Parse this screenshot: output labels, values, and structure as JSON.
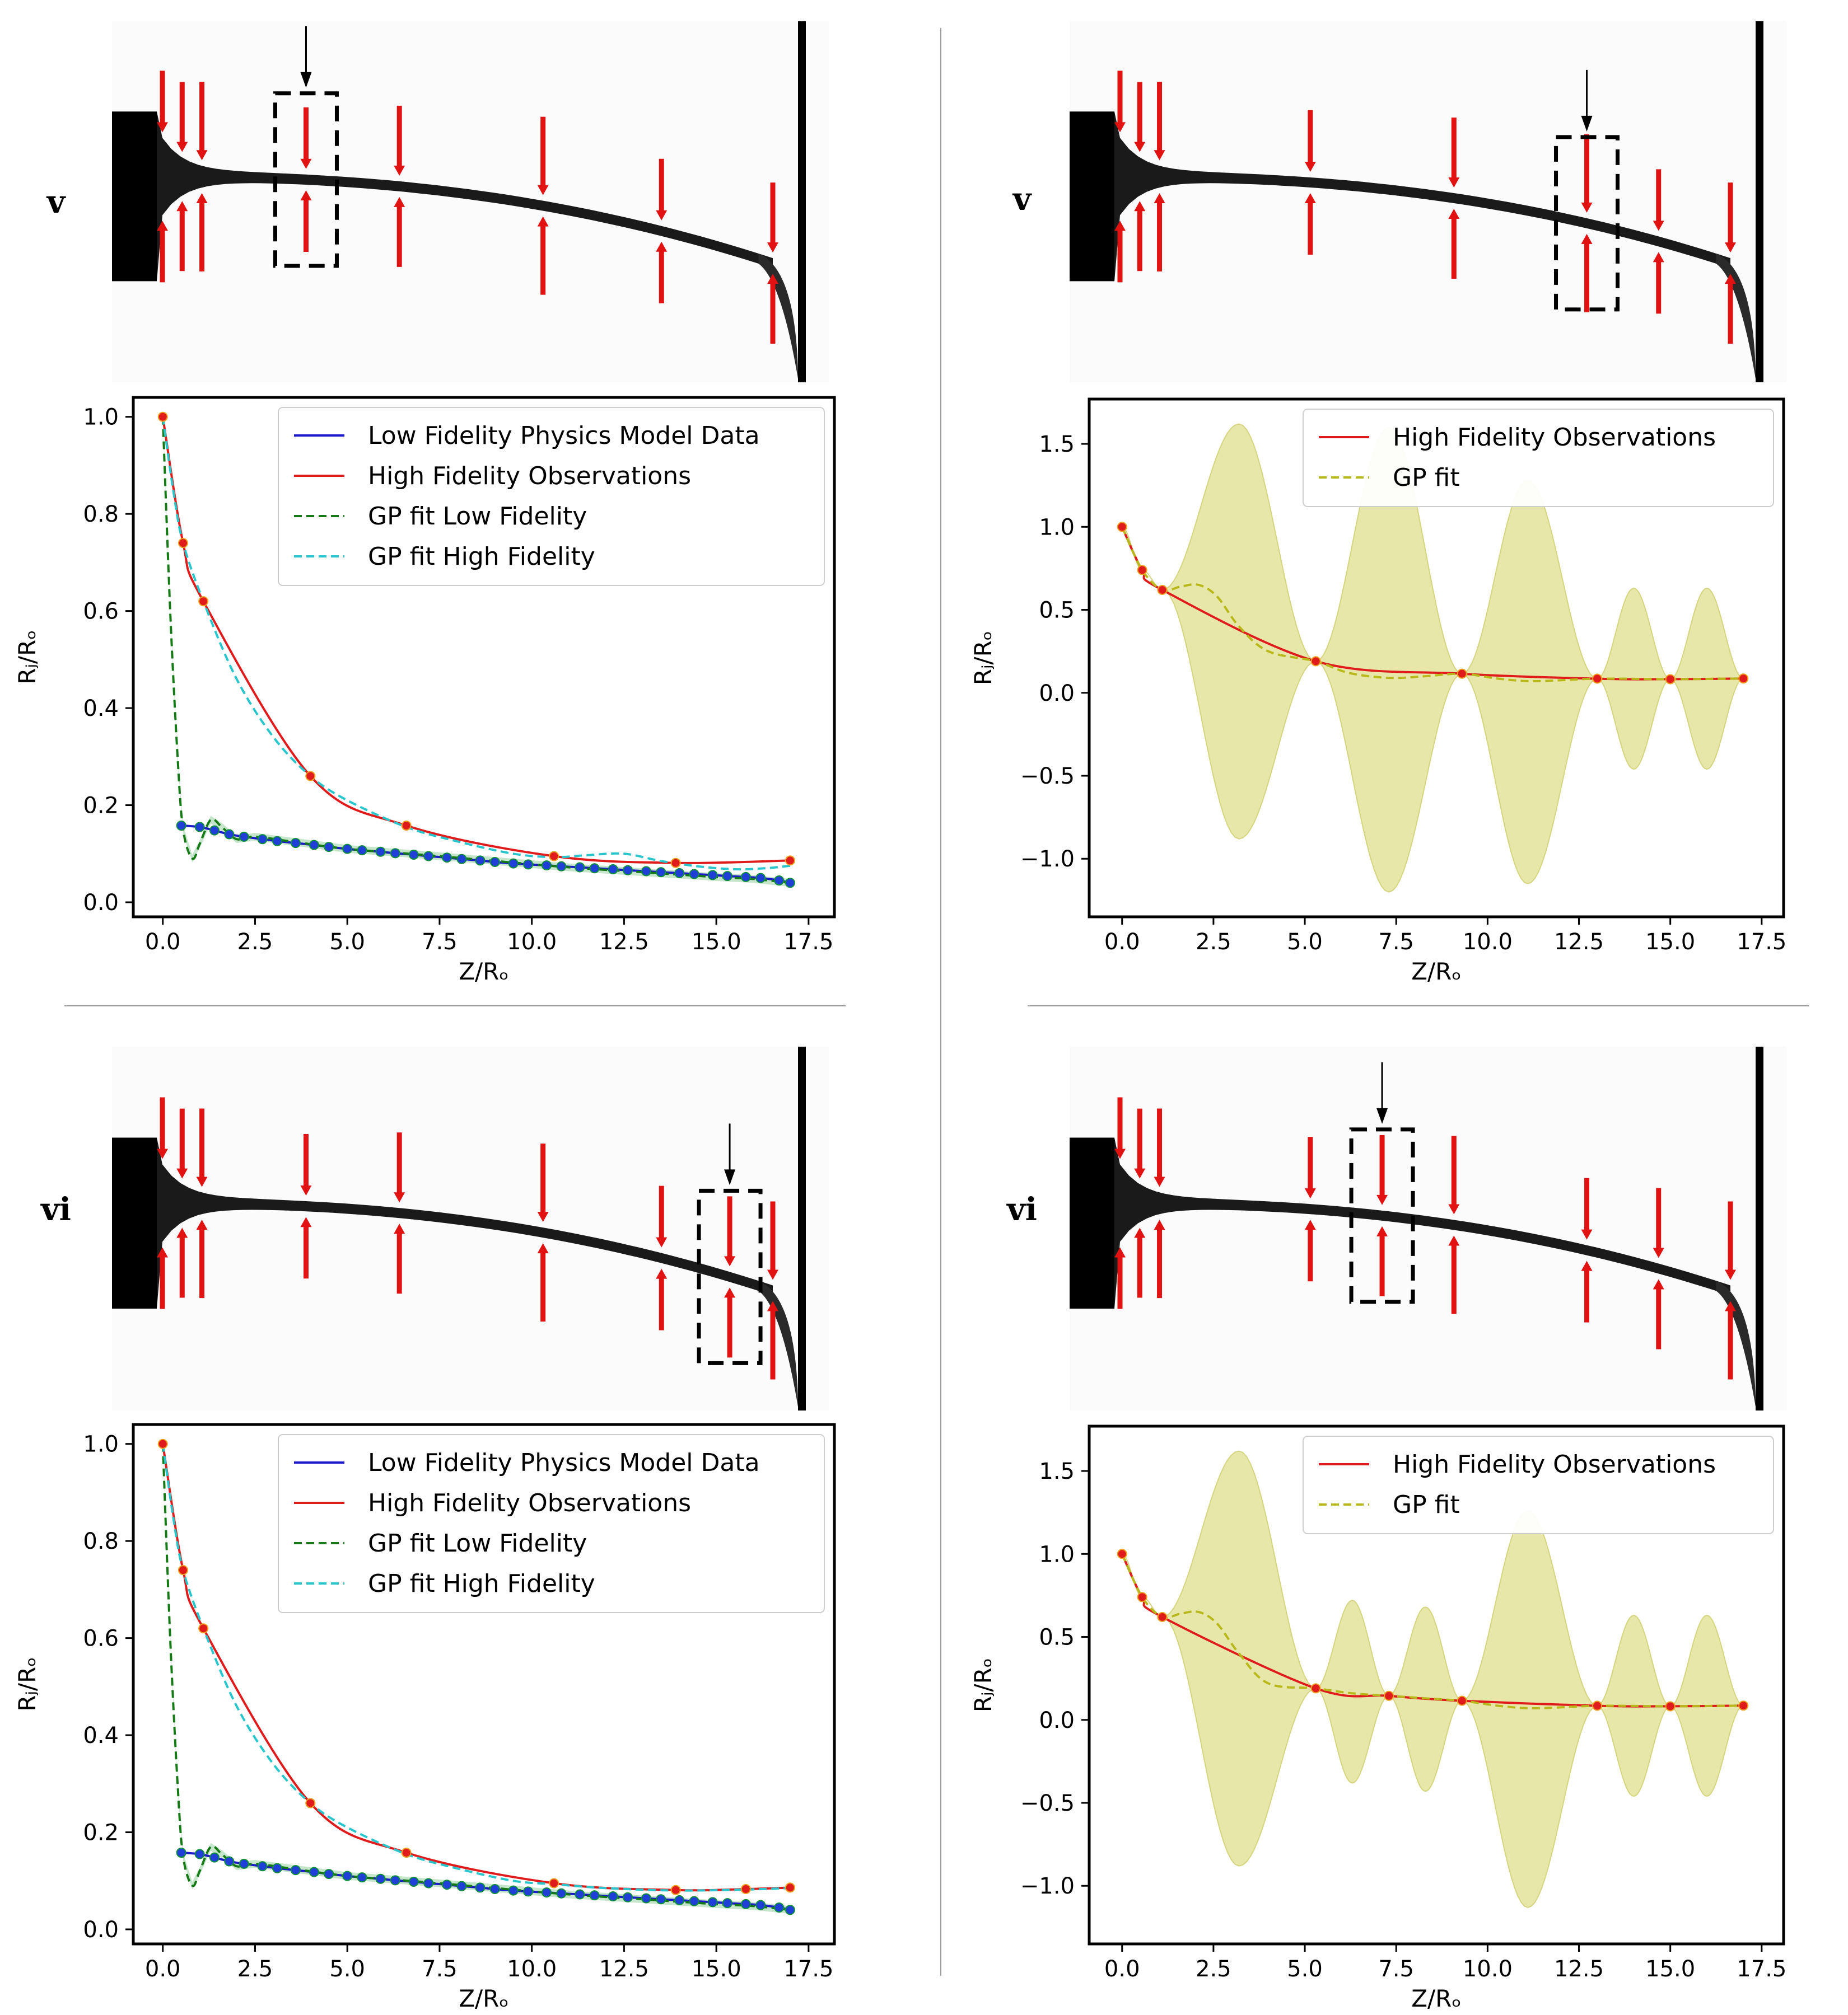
{
  "panel_labels": {
    "top": "v",
    "bottom": "vi"
  },
  "colors": {
    "lowfi_line": "#1a1acc",
    "lowfi_point": "#1f3fd6",
    "highfi_line": "#e01b1b",
    "gp_low": "#157a15",
    "gp_high": "#28c6cc",
    "gp_fit": "#b8b81a",
    "gp_band": "#e6e6a6",
    "arrow_red": "#e01212"
  },
  "icons": {
    "indicator": "down-arrow-icon",
    "selection": "dashed-selection-box"
  },
  "chart_data": [
    {
      "id": "top-left",
      "type": "line",
      "xlabel": "Z/Rₒ",
      "ylabel": "Rⱼ/Rₒ",
      "xlim": [
        -0.8,
        18.2
      ],
      "ylim": [
        -0.03,
        1.04
      ],
      "xticks": [
        0,
        2.5,
        5,
        7.5,
        10,
        12.5,
        15,
        17.5
      ],
      "xtick_labels": [
        "0.0",
        "2.5",
        "5.0",
        "7.5",
        "10.0",
        "12.5",
        "15.0",
        "17.5"
      ],
      "yticks": [
        0,
        0.2,
        0.4,
        0.6,
        0.8,
        1.0
      ],
      "ytick_labels": [
        "0.0",
        "0.2",
        "0.4",
        "0.6",
        "0.8",
        "1.0"
      ],
      "legend": [
        "Low Fidelity Physics Model Data",
        "High Fidelity Observations",
        "GP fit Low Fidelity",
        "GP fit High Fidelity"
      ],
      "low_x": [
        0.5,
        1.0,
        1.4,
        1.8,
        2.2,
        2.7,
        3.1,
        3.6,
        4.1,
        4.5,
        5.0,
        5.4,
        5.9,
        6.3,
        6.8,
        7.2,
        7.7,
        8.1,
        8.6,
        9.0,
        9.5,
        9.9,
        10.4,
        10.8,
        11.3,
        11.7,
        12.2,
        12.6,
        13.1,
        13.5,
        14.0,
        14.4,
        14.9,
        15.3,
        15.8,
        16.2,
        16.7,
        17.0
      ],
      "low_y": [
        0.158,
        0.155,
        0.148,
        0.14,
        0.135,
        0.13,
        0.126,
        0.122,
        0.118,
        0.114,
        0.11,
        0.107,
        0.104,
        0.101,
        0.098,
        0.095,
        0.092,
        0.089,
        0.086,
        0.083,
        0.08,
        0.078,
        0.076,
        0.074,
        0.072,
        0.07,
        0.068,
        0.066,
        0.064,
        0.062,
        0.06,
        0.058,
        0.056,
        0.054,
        0.052,
        0.05,
        0.045,
        0.04
      ],
      "high_x": [
        0,
        0.55,
        1.1,
        4.0,
        6.6,
        10.6,
        13.9,
        17.0
      ],
      "high_y": [
        1.0,
        0.74,
        0.62,
        0.26,
        0.158,
        0.095,
        0.081,
        0.086
      ],
      "gp_low_x": [
        0,
        0.2,
        0.4,
        0.55,
        0.8,
        1.0,
        1.3,
        1.6,
        2.0,
        2.5,
        3.5,
        5,
        7,
        9,
        11,
        13,
        15,
        16,
        17
      ],
      "gp_low_y": [
        1.0,
        0.6,
        0.3,
        0.15,
        0.09,
        0.12,
        0.17,
        0.155,
        0.13,
        0.135,
        0.125,
        0.11,
        0.098,
        0.085,
        0.072,
        0.062,
        0.052,
        0.048,
        0.04
      ],
      "gp_high_x": [
        0,
        0.3,
        0.55,
        1.1,
        2,
        3,
        4,
        5,
        6.6,
        8,
        9.5,
        10.6,
        11.5,
        12.5,
        13.5,
        14.5,
        15.5,
        16.3,
        17
      ],
      "gp_high_y": [
        1.0,
        0.84,
        0.74,
        0.62,
        0.46,
        0.34,
        0.26,
        0.21,
        0.155,
        0.125,
        0.1,
        0.093,
        0.097,
        0.1,
        0.085,
        0.074,
        0.068,
        0.07,
        0.075
      ],
      "image": {
        "label_key": "top",
        "arrow_stations": [
          0,
          0.55,
          1.1,
          4.0,
          6.6,
          10.6,
          13.9,
          17.0
        ],
        "selected": 3
      }
    },
    {
      "id": "top-right",
      "type": "line",
      "xlabel": "Z/Rₒ",
      "ylabel": "Rⱼ/Rₒ",
      "xlim": [
        -0.9,
        18.1
      ],
      "ylim": [
        -1.35,
        1.77
      ],
      "xticks": [
        0,
        2.5,
        5,
        7.5,
        10,
        12.5,
        15,
        17.5
      ],
      "xtick_labels": [
        "0.0",
        "2.5",
        "5.0",
        "7.5",
        "10.0",
        "12.5",
        "15.0",
        "17.5"
      ],
      "yticks": [
        -1.0,
        -0.5,
        0.0,
        0.5,
        1.0,
        1.5
      ],
      "ytick_labels": [
        "−1.0",
        "−0.5",
        "0.0",
        "0.5",
        "1.0",
        "1.5"
      ],
      "legend": [
        "High Fidelity Observations",
        "GP fit"
      ],
      "high_x": [
        0,
        0.55,
        1.1,
        5.3,
        9.3,
        13.0,
        15.0,
        17.0
      ],
      "high_y": [
        1.0,
        0.74,
        0.62,
        0.19,
        0.115,
        0.085,
        0.082,
        0.086
      ],
      "gp_x": [
        0,
        0.55,
        1.1,
        1.6,
        2.1,
        2.6,
        3.2,
        4.0,
        5.3,
        6.2,
        7.3,
        8.3,
        9.3,
        10.3,
        11.3,
        13.0,
        15.0,
        17.0
      ],
      "gp_y": [
        1.0,
        0.74,
        0.62,
        0.64,
        0.65,
        0.58,
        0.4,
        0.25,
        0.19,
        0.12,
        0.09,
        0.1,
        0.115,
        0.085,
        0.07,
        0.085,
        0.082,
        0.086
      ],
      "band_knots": [
        0,
        0.55,
        1.1,
        5.3,
        9.3,
        13.0,
        15.0,
        17.0
      ],
      "band_peaks": [
        {
          "x": 3.2,
          "upper": 1.62,
          "lower": -0.88
        },
        {
          "x": 7.3,
          "upper": 1.6,
          "lower": -1.2
        },
        {
          "x": 11.1,
          "upper": 1.28,
          "lower": -1.15
        },
        {
          "x": 14.0,
          "upper": 0.63,
          "lower": -0.46
        },
        {
          "x": 16.0,
          "upper": 0.63,
          "lower": -0.46
        }
      ],
      "image": {
        "label_key": "top",
        "arrow_stations": [
          0,
          0.55,
          1.1,
          5.3,
          9.3,
          13.0,
          15.0,
          17.0
        ],
        "selected": 5
      }
    },
    {
      "id": "bottom-left",
      "type": "line",
      "xlabel": "Z/Rₒ",
      "ylabel": "Rⱼ/Rₒ",
      "xlim": [
        -0.8,
        18.2
      ],
      "ylim": [
        -0.03,
        1.04
      ],
      "xticks": [
        0,
        2.5,
        5,
        7.5,
        10,
        12.5,
        15,
        17.5
      ],
      "xtick_labels": [
        "0.0",
        "2.5",
        "5.0",
        "7.5",
        "10.0",
        "12.5",
        "15.0",
        "17.5"
      ],
      "yticks": [
        0,
        0.2,
        0.4,
        0.6,
        0.8,
        1.0
      ],
      "ytick_labels": [
        "0.0",
        "0.2",
        "0.4",
        "0.6",
        "0.8",
        "1.0"
      ],
      "legend": [
        "Low Fidelity Physics Model Data",
        "High Fidelity Observations",
        "GP fit Low Fidelity",
        "GP fit High Fidelity"
      ],
      "low_x": [
        0.5,
        1.0,
        1.4,
        1.8,
        2.2,
        2.7,
        3.1,
        3.6,
        4.1,
        4.5,
        5.0,
        5.4,
        5.9,
        6.3,
        6.8,
        7.2,
        7.7,
        8.1,
        8.6,
        9.0,
        9.5,
        9.9,
        10.4,
        10.8,
        11.3,
        11.7,
        12.2,
        12.6,
        13.1,
        13.5,
        14.0,
        14.4,
        14.9,
        15.3,
        15.8,
        16.2,
        16.7,
        17.0
      ],
      "low_y": [
        0.158,
        0.155,
        0.148,
        0.14,
        0.135,
        0.13,
        0.126,
        0.122,
        0.118,
        0.114,
        0.11,
        0.107,
        0.104,
        0.101,
        0.098,
        0.095,
        0.092,
        0.089,
        0.086,
        0.083,
        0.08,
        0.078,
        0.076,
        0.074,
        0.072,
        0.07,
        0.068,
        0.066,
        0.064,
        0.062,
        0.06,
        0.058,
        0.056,
        0.054,
        0.052,
        0.05,
        0.045,
        0.04
      ],
      "high_x": [
        0,
        0.55,
        1.1,
        4.0,
        6.6,
        10.6,
        13.9,
        15.8,
        17.0
      ],
      "high_y": [
        1.0,
        0.74,
        0.62,
        0.26,
        0.158,
        0.095,
        0.081,
        0.083,
        0.086
      ],
      "gp_low_x": [
        0,
        0.2,
        0.4,
        0.55,
        0.8,
        1.0,
        1.3,
        1.6,
        2.0,
        2.5,
        3.5,
        5,
        7,
        9,
        11,
        13,
        15,
        16,
        17
      ],
      "gp_low_y": [
        1.0,
        0.6,
        0.3,
        0.15,
        0.09,
        0.12,
        0.17,
        0.155,
        0.13,
        0.135,
        0.125,
        0.11,
        0.098,
        0.085,
        0.072,
        0.062,
        0.052,
        0.048,
        0.04
      ],
      "gp_high_x": [
        0,
        0.3,
        0.55,
        1.1,
        2,
        3,
        4,
        5,
        6.6,
        8,
        9.5,
        10.6,
        12,
        13.9,
        15.8,
        17
      ],
      "gp_high_y": [
        1.0,
        0.84,
        0.74,
        0.62,
        0.46,
        0.34,
        0.26,
        0.21,
        0.155,
        0.125,
        0.1,
        0.093,
        0.085,
        0.08,
        0.082,
        0.085
      ],
      "image": {
        "label_key": "bottom",
        "arrow_stations": [
          0,
          0.55,
          1.1,
          4.0,
          6.6,
          10.6,
          13.9,
          15.8,
          17.0
        ],
        "selected": 7
      }
    },
    {
      "id": "bottom-right",
      "type": "line",
      "xlabel": "Z/Rₒ",
      "ylabel": "Rⱼ/Rₒ",
      "xlim": [
        -0.9,
        18.1
      ],
      "ylim": [
        -1.35,
        1.77
      ],
      "xticks": [
        0,
        2.5,
        5,
        7.5,
        10,
        12.5,
        15,
        17.5
      ],
      "xtick_labels": [
        "0.0",
        "2.5",
        "5.0",
        "7.5",
        "10.0",
        "12.5",
        "15.0",
        "17.5"
      ],
      "yticks": [
        -1.0,
        -0.5,
        0.0,
        0.5,
        1.0,
        1.5
      ],
      "ytick_labels": [
        "−1.0",
        "−0.5",
        "0.0",
        "0.5",
        "1.0",
        "1.5"
      ],
      "legend": [
        "High Fidelity Observations",
        "GP fit"
      ],
      "high_x": [
        0,
        0.55,
        1.1,
        5.3,
        7.3,
        9.3,
        13.0,
        15.0,
        17.0
      ],
      "high_y": [
        1.0,
        0.74,
        0.62,
        0.19,
        0.145,
        0.115,
        0.085,
        0.082,
        0.086
      ],
      "gp_x": [
        0,
        0.55,
        1.1,
        1.6,
        2.1,
        2.6,
        3.2,
        4.0,
        5.3,
        6.3,
        7.3,
        8.3,
        9.3,
        10.3,
        11.3,
        13.0,
        15.0,
        17.0
      ],
      "gp_y": [
        1.0,
        0.74,
        0.62,
        0.64,
        0.65,
        0.58,
        0.4,
        0.22,
        0.19,
        0.16,
        0.145,
        0.13,
        0.115,
        0.085,
        0.07,
        0.085,
        0.082,
        0.086
      ],
      "band_knots": [
        0,
        0.55,
        1.1,
        5.3,
        7.3,
        9.3,
        13.0,
        15.0,
        17.0
      ],
      "band_peaks": [
        {
          "x": 3.2,
          "upper": 1.62,
          "lower": -0.88
        },
        {
          "x": 6.3,
          "upper": 0.72,
          "lower": -0.38
        },
        {
          "x": 8.3,
          "upper": 0.68,
          "lower": -0.43
        },
        {
          "x": 11.1,
          "upper": 1.26,
          "lower": -1.13
        },
        {
          "x": 14.0,
          "upper": 0.63,
          "lower": -0.46
        },
        {
          "x": 16.0,
          "upper": 0.63,
          "lower": -0.46
        }
      ],
      "image": {
        "label_key": "bottom",
        "arrow_stations": [
          0,
          0.55,
          1.1,
          5.3,
          7.3,
          9.3,
          13.0,
          15.0,
          17.0
        ],
        "selected": 4
      }
    }
  ]
}
